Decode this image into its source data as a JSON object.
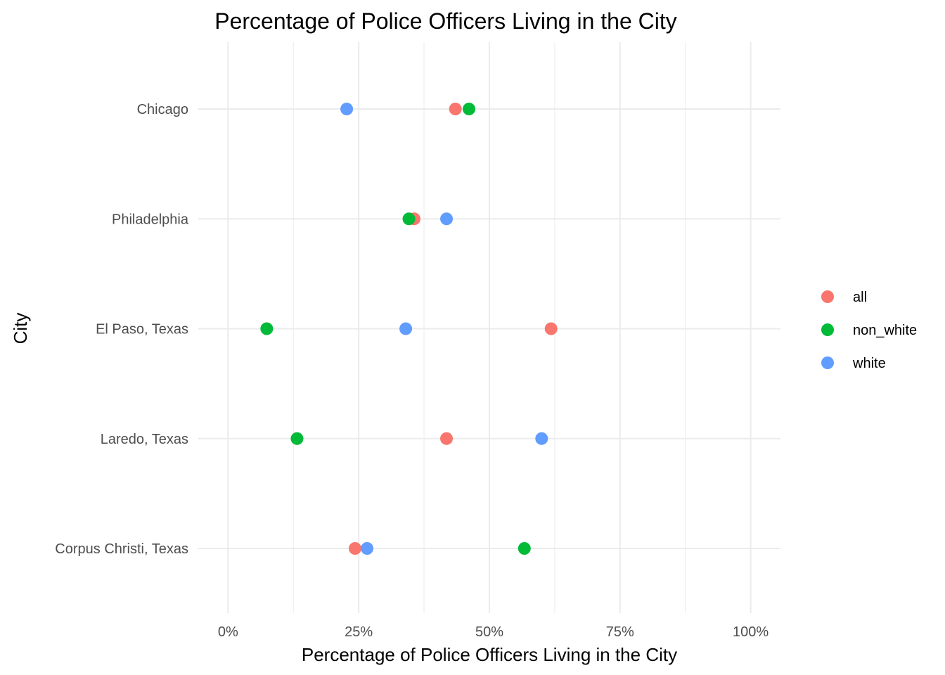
{
  "chart_data": {
    "type": "scatter",
    "title": "Percentage of Police Officers Living in the City",
    "xlabel": "Percentage of Police Officers Living in the City",
    "ylabel": "City",
    "x_ticks": [
      0,
      25,
      50,
      75,
      100
    ],
    "x_tick_labels": [
      "0%",
      "25%",
      "50%",
      "75%",
      "100%"
    ],
    "xlim": [
      -5.7,
      105.7
    ],
    "categories": [
      "Chicago",
      "Philadelphia",
      "El Paso, Texas",
      "Laredo, Texas",
      "Corpus Christi, Texas"
    ],
    "grid": true,
    "legend_position": "right",
    "series": [
      {
        "name": "all",
        "color": "#F8766D",
        "values": [
          43.5,
          35.6,
          61.8,
          41.8,
          24.3
        ]
      },
      {
        "name": "non_white",
        "color": "#00BA38",
        "values": [
          46.1,
          34.6,
          7.4,
          13.2,
          56.7
        ]
      },
      {
        "name": "white",
        "color": "#619CFF",
        "values": [
          22.7,
          41.8,
          34.0,
          60.0,
          26.6
        ]
      }
    ]
  }
}
